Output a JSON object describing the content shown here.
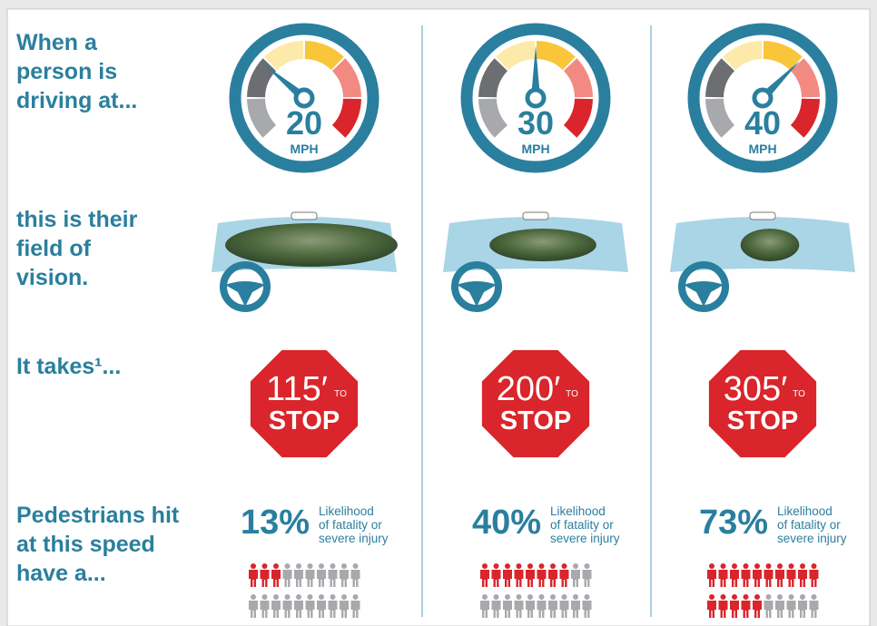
{
  "rows": [
    {
      "label": [
        "When a",
        "person is",
        "driving at..."
      ]
    },
    {
      "label": [
        "this is their",
        "field of",
        "vision."
      ]
    },
    {
      "label": [
        "It takes¹..."
      ]
    },
    {
      "label": [
        "Pedestrians hit",
        "at this speed",
        "have a..."
      ]
    }
  ],
  "columns": [
    {
      "speed": 20,
      "speed_unit": "MPH",
      "distance": "115′",
      "to": "TO",
      "stop": "STOP",
      "fatality_rate": 13,
      "fatality_label": "13%",
      "description": [
        "Likelihood",
        "of fatality or",
        "severe injury"
      ]
    },
    {
      "speed": 30,
      "speed_unit": "MPH",
      "distance": "200′",
      "to": "TO",
      "stop": "STOP",
      "fatality_rate": 40,
      "fatality_label": "40%",
      "description": [
        "Likelihood",
        "of fatality or",
        "severe injury"
      ]
    },
    {
      "speed": 40,
      "speed_unit": "MPH",
      "distance": "305′",
      "to": "TO",
      "stop": "STOP",
      "fatality_rate": 73,
      "fatality_label": "73%",
      "description": [
        "Likelihood",
        "of fatality or",
        "severe injury"
      ]
    }
  ]
}
